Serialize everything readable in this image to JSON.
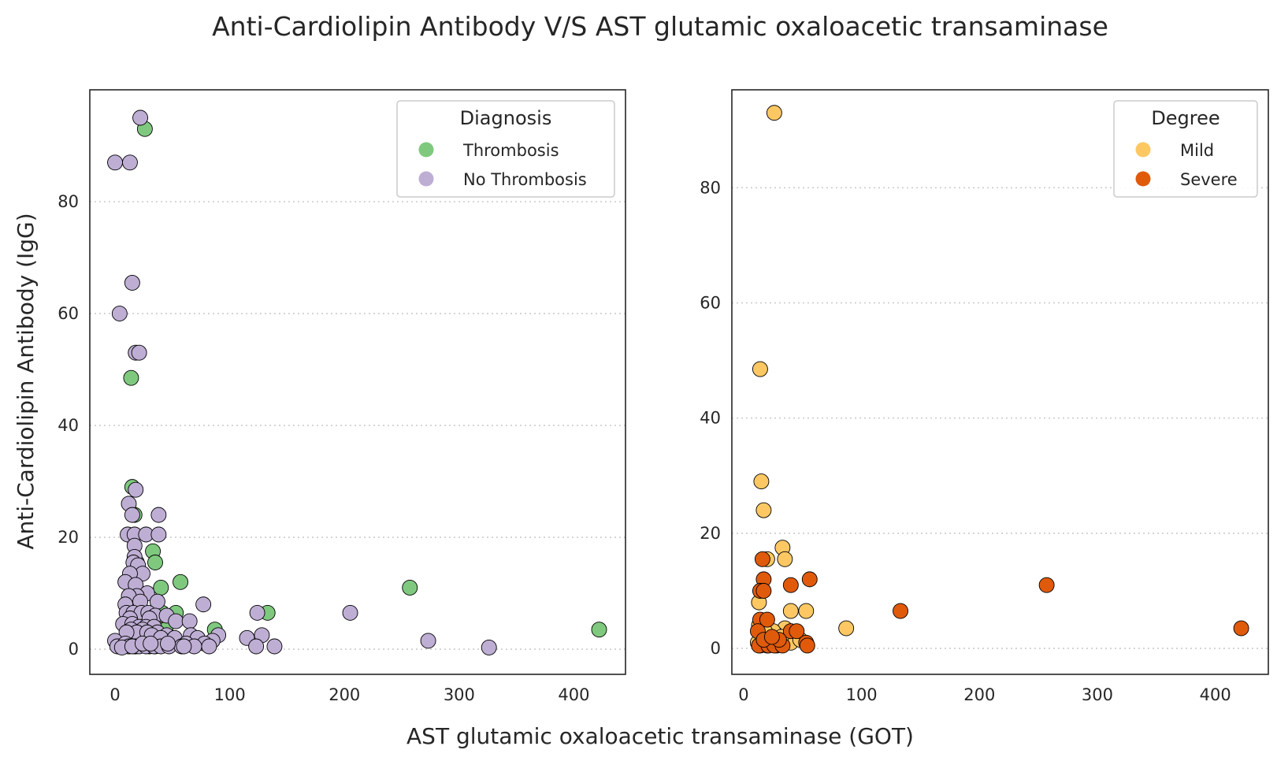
{
  "title": "Anti-Cardiolipin Antibody V/S AST glutamic oxaloacetic transaminase",
  "xlabel": "AST glutamic oxaloacetic transaminase (GOT)",
  "ylabel": "Anti-Cardiolipin Antibody (IgG)",
  "chart_data": [
    {
      "type": "scatter",
      "xlim": [
        -22,
        445
      ],
      "ylim": [
        -4.5,
        100
      ],
      "xticks": [
        0,
        100,
        200,
        300,
        400
      ],
      "yticks": [
        0,
        20,
        40,
        60,
        80
      ],
      "grid": "horizontal dotted",
      "legend_title": "Diagnosis",
      "legend_position": "top-right",
      "series": [
        {
          "name": "Thrombosis",
          "color": "#7fc97f",
          "points": [
            [
              26,
              93
            ],
            [
              14,
              48.5
            ],
            [
              15,
              29
            ],
            [
              17,
              24
            ],
            [
              19,
              15.5
            ],
            [
              33,
              17.5
            ],
            [
              35,
              15.5
            ],
            [
              40,
              11
            ],
            [
              57,
              12
            ],
            [
              17,
              12
            ],
            [
              14,
              9.5
            ],
            [
              11,
              8
            ],
            [
              10,
              5
            ],
            [
              20,
              5
            ],
            [
              26,
              4
            ],
            [
              40,
              3.5
            ],
            [
              44,
              3.5
            ],
            [
              41,
              6.5
            ],
            [
              53,
              6.5
            ],
            [
              87,
              3.5
            ],
            [
              133,
              6.5
            ],
            [
              257,
              11
            ],
            [
              422,
              3.5
            ],
            [
              14,
              1.5
            ],
            [
              22,
              1
            ],
            [
              30,
              0.5
            ],
            [
              35,
              0.5
            ],
            [
              18,
              0.5
            ],
            [
              12,
              0.5
            ],
            [
              25,
              2
            ],
            [
              30,
              1.5
            ],
            [
              16,
              3
            ]
          ]
        },
        {
          "name": "No Thrombosis",
          "color": "#beaed4",
          "points": [
            [
              22,
              95
            ],
            [
              0,
              87
            ],
            [
              13,
              87
            ],
            [
              15,
              65.5
            ],
            [
              4,
              60
            ],
            [
              18,
              53
            ],
            [
              21,
              53
            ],
            [
              18,
              28.5
            ],
            [
              12,
              26
            ],
            [
              15,
              24
            ],
            [
              38,
              24
            ],
            [
              11,
              20.5
            ],
            [
              17,
              20.5
            ],
            [
              27,
              20.5
            ],
            [
              38,
              20.5
            ],
            [
              17,
              18.5
            ],
            [
              17,
              16.5
            ],
            [
              16,
              15.5
            ],
            [
              20,
              15
            ],
            [
              24,
              13.5
            ],
            [
              13,
              13.5
            ],
            [
              9,
              12
            ],
            [
              18,
              11.5
            ],
            [
              28,
              10
            ],
            [
              19,
              9.5
            ],
            [
              12,
              9.5
            ],
            [
              37,
              8.5
            ],
            [
              22,
              8.5
            ],
            [
              9,
              8
            ],
            [
              77,
              8
            ],
            [
              10,
              6.5
            ],
            [
              16,
              6.5
            ],
            [
              23,
              6.5
            ],
            [
              29,
              6.5
            ],
            [
              35,
              6
            ],
            [
              45,
              6
            ],
            [
              13,
              5.5
            ],
            [
              30,
              5.5
            ],
            [
              53,
              5
            ],
            [
              65,
              5
            ],
            [
              7,
              4.5
            ],
            [
              15,
              4.5
            ],
            [
              21,
              4
            ],
            [
              27,
              4
            ],
            [
              34,
              4
            ],
            [
              14,
              3.5
            ],
            [
              24,
              3.5
            ],
            [
              37,
              3
            ],
            [
              19,
              3
            ],
            [
              10,
              3
            ],
            [
              28,
              3
            ],
            [
              32,
              2.5
            ],
            [
              45,
              2.5
            ],
            [
              66,
              2.5
            ],
            [
              90,
              2.5
            ],
            [
              115,
              2
            ],
            [
              128,
              2.5
            ],
            [
              40,
              2
            ],
            [
              52,
              2
            ],
            [
              72,
              2
            ],
            [
              85,
              1.5
            ],
            [
              78,
              1
            ],
            [
              62,
              1
            ],
            [
              0,
              1.5
            ],
            [
              2,
              0.5
            ],
            [
              9,
              1
            ],
            [
              12,
              0.5
            ],
            [
              17,
              0.5
            ],
            [
              21,
              0.5
            ],
            [
              27,
              0.5
            ],
            [
              34,
              0.5
            ],
            [
              40,
              0.5
            ],
            [
              47,
              0.5
            ],
            [
              58,
              0.5
            ],
            [
              69,
              0.5
            ],
            [
              82,
              0.5
            ],
            [
              123,
              0.5
            ],
            [
              139,
              0.5
            ],
            [
              124,
              6.5
            ],
            [
              205,
              6.5
            ],
            [
              273,
              1.5
            ],
            [
              326,
              0.3
            ],
            [
              6,
              0.3
            ],
            [
              15,
              0.5
            ],
            [
              24,
              1
            ],
            [
              31,
              1
            ],
            [
              46,
              1
            ],
            [
              60,
              0.5
            ]
          ]
        }
      ]
    },
    {
      "type": "scatter",
      "xlim": [
        -10,
        445
      ],
      "ylim": [
        -4.5,
        97
      ],
      "xticks": [
        0,
        100,
        200,
        300,
        400
      ],
      "yticks": [
        0,
        20,
        40,
        60,
        80
      ],
      "grid": "horizontal dotted",
      "legend_title": "Degree",
      "legend_position": "top-right",
      "series": [
        {
          "name": "Mild",
          "color": "#fdc863",
          "points": [
            [
              26,
              93
            ],
            [
              14,
              48.5
            ],
            [
              15,
              29
            ],
            [
              17,
              24
            ],
            [
              33,
              17.5
            ],
            [
              35,
              15.5
            ],
            [
              20,
              15.5
            ],
            [
              13,
              8
            ],
            [
              40,
              6.5
            ],
            [
              53,
              6.5
            ],
            [
              87,
              3.5
            ],
            [
              35,
              3.5
            ],
            [
              27,
              2.5
            ],
            [
              22,
              2
            ],
            [
              13,
              4
            ],
            [
              17,
              1.5
            ],
            [
              22,
              1
            ],
            [
              30,
              1
            ],
            [
              40,
              1
            ],
            [
              48,
              1.5
            ],
            [
              14,
              0.5
            ],
            [
              20,
              0.5
            ],
            [
              28,
              0.5
            ],
            [
              15,
              2
            ],
            [
              12,
              1
            ],
            [
              25,
              3
            ],
            [
              18,
              3
            ],
            [
              32,
              2
            ]
          ]
        },
        {
          "name": "Severe",
          "color": "#e05a0c",
          "points": [
            [
              16,
              15.5
            ],
            [
              17,
              12
            ],
            [
              56,
              12
            ],
            [
              14,
              10
            ],
            [
              17,
              10
            ],
            [
              40,
              11
            ],
            [
              257,
              11
            ],
            [
              133,
              6.5
            ],
            [
              422,
              3.5
            ],
            [
              14,
              5
            ],
            [
              20,
              5
            ],
            [
              12,
              3
            ],
            [
              40,
              3
            ],
            [
              45,
              3
            ],
            [
              53,
              1
            ],
            [
              54,
              0.5
            ],
            [
              13,
              0.5
            ],
            [
              21,
              0.5
            ],
            [
              26,
              0.5
            ],
            [
              33,
              0.5
            ],
            [
              17,
              1.5
            ],
            [
              30,
              1.5
            ],
            [
              24,
              2
            ]
          ]
        }
      ]
    }
  ]
}
